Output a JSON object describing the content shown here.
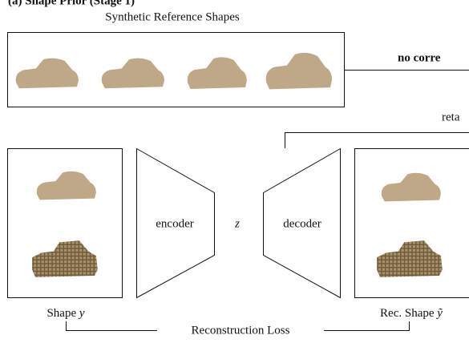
{
  "header": {
    "title": "(a) Shape Prior (Stage 1)"
  },
  "reference": {
    "label": "Synthetic Reference Shapes",
    "arrow_label": "no corre"
  },
  "retain_label": "reta",
  "encoder": {
    "label": "encoder"
  },
  "latent": {
    "label": "z"
  },
  "decoder": {
    "label": "decoder"
  },
  "input": {
    "label": "Shape",
    "symbol": "y"
  },
  "output": {
    "label": "Rec. Shape",
    "symbol": "ỹ"
  },
  "loss": {
    "label": "Reconstruction Loss"
  }
}
